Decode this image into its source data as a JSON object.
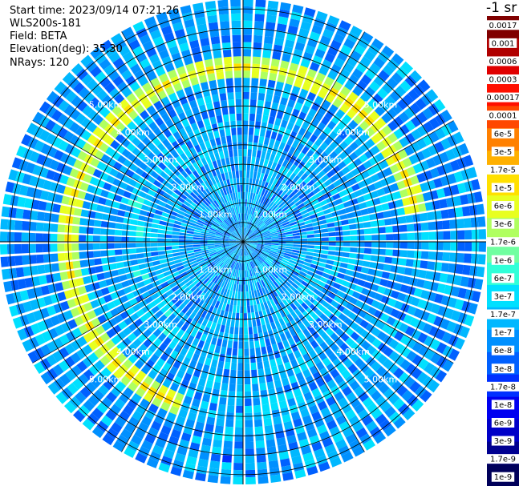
{
  "header": {
    "start_time": "Start time: 2023/09/14 07:21:26",
    "device": "WLS200s-181",
    "field": "Field: BETA",
    "elevation": "Elevation(deg): 35.30",
    "nrays": "NRays: 120",
    "unit_fragment": "-1 sr"
  },
  "chart_data": {
    "type": "heatmap",
    "projection": "polar-ppi",
    "field": "BETA",
    "nrays": 120,
    "elevation_deg": 35.3,
    "range_rings_km": [
      0.5,
      1.0,
      1.5,
      2.0,
      2.5,
      3.0,
      3.5,
      4.0,
      4.5,
      5.0,
      5.5,
      6.0
    ],
    "range_ring_labels": [
      "1.00km",
      "2.00km",
      "3.00km",
      "4.00km",
      "5.00km"
    ],
    "max_range_km": 6.25,
    "colorbar": {
      "colors": [
        "#00005a",
        "#000090",
        "#0000c8",
        "#0000f0",
        "#0030ff",
        "#0060ff",
        "#0090ff",
        "#00b8ff",
        "#00e0ff",
        "#30ffd8",
        "#70ffa0",
        "#b0ff60",
        "#e8ff20",
        "#ffe000",
        "#ffb000",
        "#ff8000",
        "#ff4800",
        "#ff1000",
        "#e00000",
        "#b00000",
        "#800000"
      ],
      "labels": [
        "1e-9",
        "1.7e-9",
        "3e-9",
        "6e-9",
        "1e-8",
        "1.7e-8",
        "3e-8",
        "6e-8",
        "1e-7",
        "1.7e-7",
        "3e-7",
        "6e-7",
        "1e-6",
        "1.7e-6",
        "3e-6",
        "6e-6",
        "1e-5",
        "1.7e-5",
        "3e-5",
        "6e-5",
        "0.0001",
        "0.00017",
        "0.0003",
        "0.0006",
        "0.001",
        "0.0017"
      ]
    },
    "features": {
      "background_level": "1e-7",
      "aerosol_ring_range_km": 4.5,
      "aerosol_ring_level": "1e-6",
      "aerosol_ring_azimuth_deg": [
        200,
        80
      ]
    }
  }
}
